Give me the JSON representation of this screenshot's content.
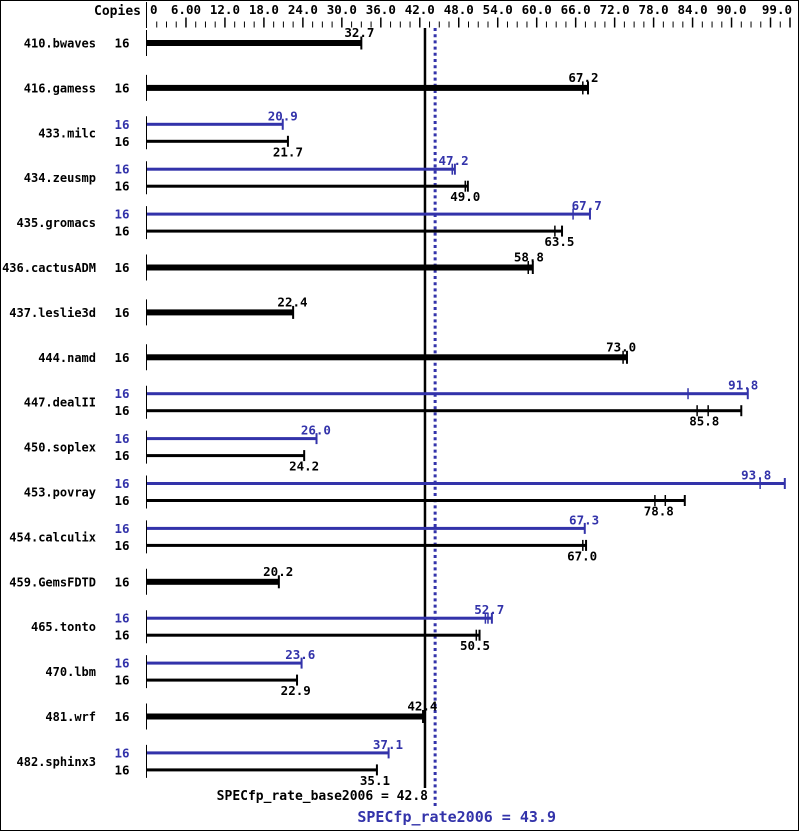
{
  "summary": {
    "base_label": "SPECfp_rate_base2006 = 42.8",
    "peak_label": "SPECfp_rate2006 = 43.9"
  },
  "colors": {
    "base": "#000000",
    "peak": "#3333aa",
    "background": "#ffffff"
  },
  "chart_data": {
    "type": "bar",
    "orientation": "horizontal",
    "copies_header": "Copies",
    "legend_note": "thin blue bar = peak result, thin black bar = base result, thick black bar = base only; end caps and small ticks mark individual run results",
    "xaxis": {
      "min": 0,
      "max": 99,
      "minor_step": 1.5,
      "major_step": 6,
      "tick_values": [
        0,
        6,
        12,
        18,
        24,
        30,
        36,
        42,
        48,
        54,
        60,
        66,
        72,
        78,
        84,
        90,
        99
      ],
      "tick_labels": [
        "0",
        "6.00",
        "12.0",
        "18.0",
        "24.0",
        "30.0",
        "36.0",
        "42.0",
        "48.0",
        "54.0",
        "60.0",
        "66.0",
        "72.0",
        "78.0",
        "84.0",
        "90.0",
        "99.0"
      ]
    },
    "reference_lines": [
      {
        "name": "base",
        "label_value": "42.8",
        "value": 42.8,
        "style": "solid",
        "color_key": "base"
      },
      {
        "name": "peak",
        "label_value": "43.9",
        "value": 43.9,
        "style": "dotted",
        "color_key": "peak"
      }
    ],
    "benchmarks": [
      {
        "name": "410.bwaves",
        "copies": "16",
        "peak": null,
        "base": {
          "label": "32.7",
          "value": 32.7,
          "end": 33.0,
          "runs": []
        }
      },
      {
        "name": "416.gamess",
        "copies": "16",
        "peak": null,
        "base": {
          "label": "67.2",
          "value": 67.2,
          "end": 67.9,
          "runs": [
            67.1
          ]
        }
      },
      {
        "name": "433.milc",
        "copies": "16",
        "peak": {
          "label": "20.9",
          "value": 20.9,
          "end": 20.9,
          "runs": []
        },
        "base": {
          "label": "21.7",
          "value": 21.7,
          "end": 21.7,
          "runs": []
        }
      },
      {
        "name": "434.zeusmp",
        "copies": "16",
        "peak": {
          "label": "47.2",
          "value": 47.2,
          "end": 47.4,
          "runs": [
            47.0
          ]
        },
        "base": {
          "label": "49.0",
          "value": 49.0,
          "end": 49.4,
          "runs": [
            49.0
          ]
        }
      },
      {
        "name": "435.gromacs",
        "copies": "16",
        "peak": {
          "label": "67.7",
          "value": 67.7,
          "end": 68.2,
          "runs": [
            65.6
          ]
        },
        "base": {
          "label": "63.5",
          "value": 63.5,
          "end": 63.9,
          "runs": [
            62.8
          ]
        }
      },
      {
        "name": "436.cactusADM",
        "copies": "16",
        "peak": null,
        "base": {
          "label": "58.8",
          "value": 58.8,
          "end": 59.4,
          "runs": [
            58.7
          ]
        }
      },
      {
        "name": "437.leslie3d",
        "copies": "16",
        "peak": null,
        "base": {
          "label": "22.4",
          "value": 22.4,
          "end": 22.5,
          "runs": []
        }
      },
      {
        "name": "444.namd",
        "copies": "16",
        "peak": null,
        "base": {
          "label": "73.0",
          "value": 73.0,
          "end": 73.9,
          "runs": [
            73.3
          ]
        }
      },
      {
        "name": "447.dealII",
        "copies": "16",
        "peak": {
          "label": "91.8",
          "value": 91.8,
          "end": 92.5,
          "runs": [
            83.3
          ]
        },
        "base": {
          "label": "85.8",
          "value": 85.8,
          "end": 91.5,
          "runs": [
            84.7,
            86.4
          ]
        }
      },
      {
        "name": "450.soplex",
        "copies": "16",
        "peak": {
          "label": "26.0",
          "value": 26.0,
          "end": 26.1,
          "runs": []
        },
        "base": {
          "label": "24.2",
          "value": 24.2,
          "end": 24.2,
          "runs": []
        }
      },
      {
        "name": "453.povray",
        "copies": "16",
        "peak": {
          "label": "93.8",
          "value": 93.8,
          "end": 98.2,
          "runs": [
            94.4
          ]
        },
        "base": {
          "label": "78.8",
          "value": 78.8,
          "end": 82.8,
          "runs": [
            78.2,
            79.8
          ]
        }
      },
      {
        "name": "454.calculix",
        "copies": "16",
        "peak": {
          "label": "67.3",
          "value": 67.3,
          "end": 67.4,
          "runs": []
        },
        "base": {
          "label": "67.0",
          "value": 67.0,
          "end": 67.6,
          "runs": [
            67.1
          ]
        }
      },
      {
        "name": "459.GemsFDTD",
        "copies": "16",
        "peak": null,
        "base": {
          "label": "20.2",
          "value": 20.2,
          "end": 20.3,
          "runs": []
        }
      },
      {
        "name": "465.tonto",
        "copies": "16",
        "peak": {
          "label": "52.7",
          "value": 52.7,
          "end": 53.1,
          "runs": [
            52.1,
            52.5
          ]
        },
        "base": {
          "label": "50.5",
          "value": 50.5,
          "end": 51.2,
          "runs": [
            50.7
          ]
        }
      },
      {
        "name": "470.lbm",
        "copies": "16",
        "peak": {
          "label": "23.6",
          "value": 23.6,
          "end": 23.8,
          "runs": []
        },
        "base": {
          "label": "22.9",
          "value": 22.9,
          "end": 23.1,
          "runs": []
        }
      },
      {
        "name": "481.wrf",
        "copies": "16",
        "peak": null,
        "base": {
          "label": "42.4",
          "value": 42.4,
          "end": 42.5,
          "runs": []
        }
      },
      {
        "name": "482.sphinx3",
        "copies": "16",
        "peak": {
          "label": "37.1",
          "value": 37.1,
          "end": 37.2,
          "runs": []
        },
        "base": {
          "label": "35.1",
          "value": 35.1,
          "end": 35.4,
          "runs": []
        }
      }
    ]
  }
}
